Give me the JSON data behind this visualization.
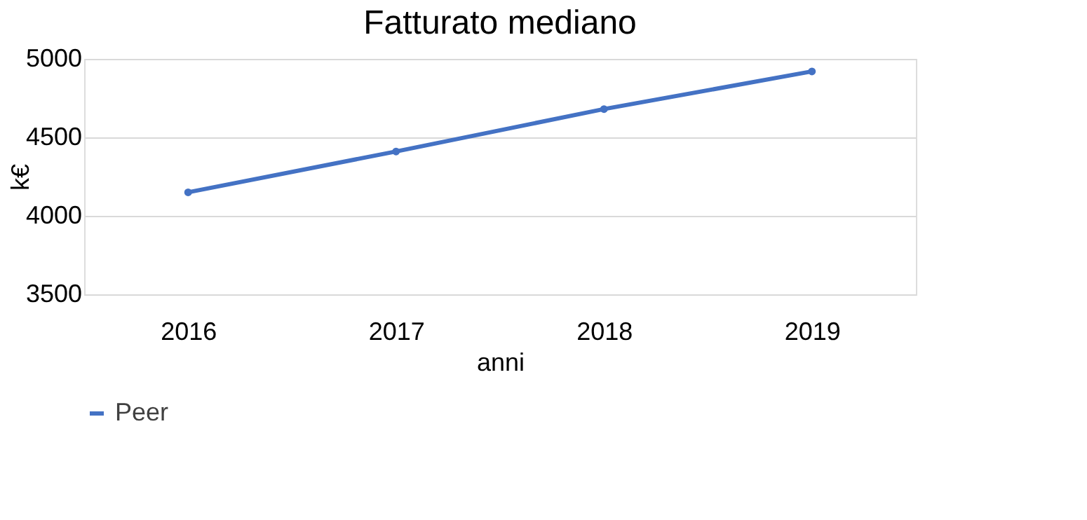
{
  "chart_data": {
    "type": "line",
    "title": "Fatturato mediano",
    "xlabel": "anni",
    "ylabel": "k€",
    "categories": [
      "2016",
      "2017",
      "2018",
      "2019"
    ],
    "series": [
      {
        "name": "Peer",
        "color": "#4472c4",
        "values": [
          4150,
          4410,
          4680,
          4920
        ]
      }
    ],
    "ylim": [
      3500,
      5000
    ],
    "yticks": [
      3500,
      4000,
      4500,
      5000
    ],
    "grid": "y",
    "legend": "bottom",
    "marker": "circle",
    "line_style": "solid"
  }
}
